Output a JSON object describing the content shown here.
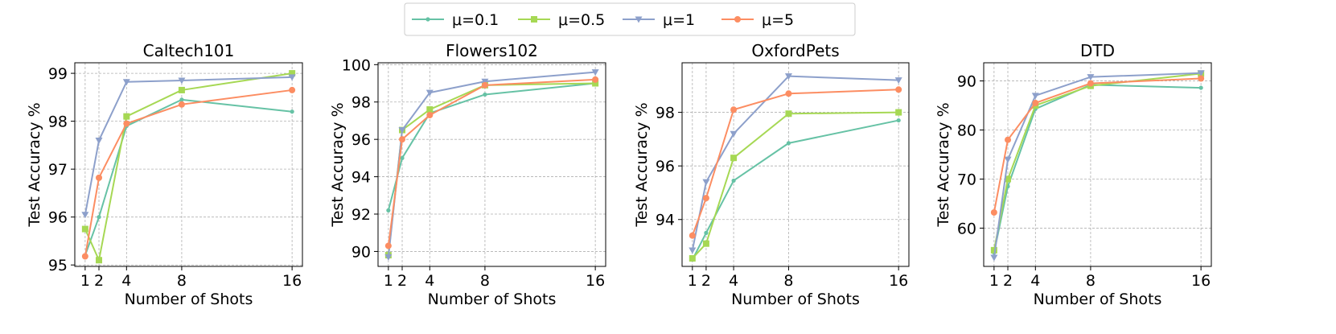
{
  "legend": {
    "placement": "top-center",
    "entries": [
      {
        "label": "μ=0.1",
        "color": "#66c2a5",
        "marker": "dot"
      },
      {
        "label": "μ=0.5",
        "color": "#a6d854",
        "marker": "square"
      },
      {
        "label": "μ=1",
        "color": "#8da0cb",
        "marker": "triangle-down"
      },
      {
        "label": "μ=5",
        "color": "#fc8d62",
        "marker": "circle"
      }
    ]
  },
  "chart_data": [
    {
      "type": "line",
      "title": "Caltech101",
      "xlabel": "Number of Shots",
      "ylabel": "Test Accuracy %",
      "x": [
        1,
        2,
        4,
        8,
        16
      ],
      "xticks": [
        1,
        2,
        4,
        8,
        16
      ],
      "yticks": [
        95,
        96,
        97,
        98,
        99
      ],
      "ylim": [
        94.97,
        99.22
      ],
      "grid": true,
      "series": [
        {
          "name": "μ=0.1",
          "values": [
            95.2,
            96.0,
            97.9,
            98.45,
            98.2
          ]
        },
        {
          "name": "μ=0.5",
          "values": [
            95.75,
            95.1,
            98.1,
            98.65,
            99.0
          ]
        },
        {
          "name": "μ=1",
          "values": [
            96.05,
            97.6,
            98.82,
            98.85,
            98.92
          ]
        },
        {
          "name": "μ=5",
          "values": [
            95.18,
            96.82,
            97.95,
            98.35,
            98.65
          ]
        }
      ]
    },
    {
      "type": "line",
      "title": "Flowers102",
      "xlabel": "Number of Shots",
      "ylabel": "Test Accuracy %",
      "x": [
        1,
        2,
        4,
        8,
        16
      ],
      "xticks": [
        1,
        2,
        4,
        8,
        16
      ],
      "yticks": [
        90,
        92,
        94,
        96,
        98,
        100
      ],
      "ylim": [
        89.2,
        100.1
      ],
      "grid": true,
      "series": [
        {
          "name": "μ=0.1",
          "values": [
            92.2,
            95.0,
            97.4,
            98.4,
            99.0
          ]
        },
        {
          "name": "μ=0.5",
          "values": [
            89.8,
            96.5,
            97.6,
            98.9,
            99.0
          ]
        },
        {
          "name": "μ=1",
          "values": [
            89.7,
            96.5,
            98.5,
            99.1,
            99.6
          ]
        },
        {
          "name": "μ=5",
          "values": [
            90.3,
            96.0,
            97.3,
            98.9,
            99.2
          ]
        }
      ]
    },
    {
      "type": "line",
      "title": "OxfordPets",
      "xlabel": "Number of Shots",
      "ylabel": "Test Accuracy %",
      "x": [
        1,
        2,
        4,
        8,
        16
      ],
      "xticks": [
        1,
        2,
        4,
        8,
        16
      ],
      "yticks": [
        94,
        96,
        98
      ],
      "ylim": [
        92.25,
        99.85
      ],
      "grid": true,
      "series": [
        {
          "name": "μ=0.1",
          "values": [
            92.5,
            93.5,
            95.45,
            96.85,
            97.7
          ]
        },
        {
          "name": "μ=0.5",
          "values": [
            92.55,
            93.1,
            96.3,
            97.95,
            98.0
          ]
        },
        {
          "name": "μ=1",
          "values": [
            92.85,
            95.4,
            97.2,
            99.35,
            99.2
          ]
        },
        {
          "name": "μ=5",
          "values": [
            93.4,
            94.8,
            98.1,
            98.7,
            98.85
          ]
        }
      ]
    },
    {
      "type": "line",
      "title": "DTD",
      "xlabel": "Number of Shots",
      "ylabel": "Test Accuracy %",
      "x": [
        1,
        2,
        4,
        8,
        16
      ],
      "xticks": [
        1,
        2,
        4,
        8,
        16
      ],
      "yticks": [
        60,
        70,
        80,
        90
      ],
      "ylim": [
        52.2,
        93.7
      ],
      "grid": true,
      "series": [
        {
          "name": "μ=0.1",
          "values": [
            55.0,
            68.5,
            84.3,
            89.2,
            88.6
          ]
        },
        {
          "name": "μ=0.5",
          "values": [
            55.5,
            70.0,
            85.0,
            89.0,
            91.5
          ]
        },
        {
          "name": "μ=1",
          "values": [
            54.0,
            74.0,
            87.0,
            90.8,
            91.6
          ]
        },
        {
          "name": "μ=5",
          "values": [
            63.2,
            78.0,
            85.5,
            89.5,
            90.5
          ]
        }
      ]
    }
  ]
}
